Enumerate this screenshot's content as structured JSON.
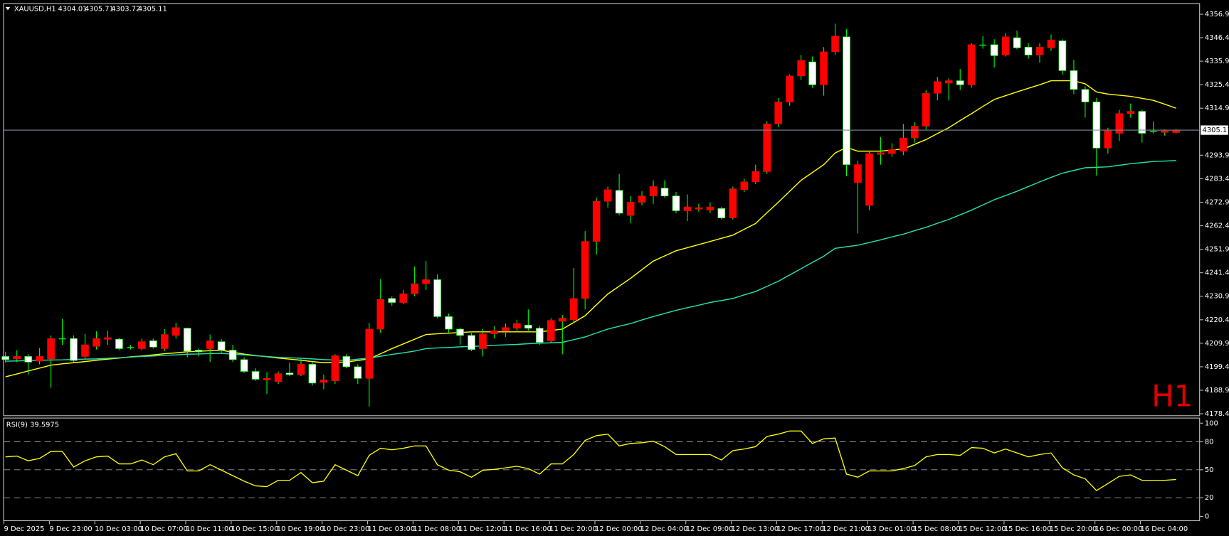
{
  "chart_data": [
    {
      "type": "candlestick",
      "title": "XAUUSD,H1",
      "watermark": "H1",
      "categories": [
        "9 Dec 2025",
        null,
        null,
        null,
        "9 Dec 23:00",
        null,
        null,
        null,
        "10 Dec 03:00",
        null,
        null,
        null,
        "10 Dec 07:00",
        null,
        null,
        null,
        "10 Dec 11:00",
        null,
        null,
        null,
        "10 Dec 15:00",
        null,
        null,
        null,
        "10 Dec 19:00",
        null,
        null,
        null,
        "10 Dec 23:00",
        null,
        null,
        null,
        "11 Dec 03:00",
        null,
        null,
        null,
        "11 Dec 08:00",
        null,
        null,
        null,
        "11 Dec 12:00",
        null,
        null,
        null,
        "11 Dec 16:00",
        null,
        null,
        null,
        "11 Dec 20:00",
        null,
        null,
        null,
        "12 Dec 00:00",
        null,
        null,
        null,
        "12 Dec 04:00",
        null,
        null,
        null,
        "12 Dec 09:00",
        null,
        null,
        null,
        "12 Dec 13:00",
        null,
        null,
        null,
        "12 Dec 17:00",
        null,
        null,
        null,
        "12 Dec 21:00",
        null,
        null,
        null,
        "13 Dec 01:00",
        null,
        null,
        null,
        "15 Dec 08:00",
        null,
        null,
        null,
        "15 Dec 12:00",
        null,
        null,
        null,
        "15 Dec 16:00",
        null,
        null,
        null,
        "15 Dec 20:00",
        null,
        null,
        null,
        "16 Dec 00:00",
        null,
        null,
        null,
        "16 Dec 04:00",
        null,
        null,
        null
      ],
      "open": [
        4204.0,
        4202.9,
        4204.0,
        4201.9,
        4202.9,
        4211.7,
        4212.0,
        4204.0,
        4208.5,
        4211.7,
        4211.7,
        4208.2,
        4207.5,
        4211.0,
        4207.5,
        4213.4,
        4216.6,
        4206.8,
        4207.5,
        4210.6,
        4206.8,
        4202.6,
        4197.3,
        4193.5,
        4192.8,
        4196.6,
        4195.9,
        4200.5,
        4192.4,
        4193.1,
        4204.0,
        4199.4,
        4194.2,
        4216.2,
        4229.9,
        4228.1,
        4232.0,
        4236.5,
        4238.3,
        4221.8,
        4216.2,
        4213.4,
        4207.5,
        4214.1,
        4215.5,
        4216.6,
        4218.0,
        4216.6,
        4211.0,
        4219.7,
        4220.4,
        4229.9,
        4255.4,
        4273.3,
        4278.2,
        4267.0,
        4272.9,
        4275.7,
        4279.2,
        4275.7,
        4269.1,
        4269.8,
        4269.4,
        4270.1,
        4265.9,
        4278.5,
        4282.0,
        4286.6,
        4307.9,
        4317.7,
        4329.3,
        4335.6,
        4325.4,
        4340.1,
        4346.8,
        4281.7,
        4271.5,
        4294.3,
        4294.6,
        4295.7,
        4301.6,
        4306.9,
        4321.6,
        4326.1,
        4327.2,
        4325.4,
        4342.9,
        4343.3,
        4338.7,
        4346.4,
        4342.2,
        4338.7,
        4341.9,
        4345.0,
        4331.7,
        4323.3,
        4317.7,
        4297.1,
        4303.7,
        4312.5,
        4313.5,
        4304.8,
        4304.1,
        4304.01
      ],
      "high": [
        4206.1,
        4206.8,
        4205.0,
        4207.8,
        4213.4,
        4220.8,
        4213.4,
        4214.1,
        4215.2,
        4215.5,
        4212.4,
        4209.2,
        4212.0,
        4212.0,
        4216.2,
        4219.0,
        4216.9,
        4207.5,
        4213.8,
        4211.7,
        4209.2,
        4203.6,
        4198.7,
        4197.0,
        4197.3,
        4201.2,
        4202.9,
        4201.5,
        4195.9,
        4205.0,
        4205.0,
        4200.5,
        4219.0,
        4238.6,
        4230.9,
        4233.7,
        4244.2,
        4246.7,
        4240.7,
        4223.2,
        4216.9,
        4214.5,
        4216.2,
        4217.6,
        4218.7,
        4220.4,
        4225.0,
        4217.6,
        4221.1,
        4222.5,
        4243.5,
        4260.0,
        4275.0,
        4279.9,
        4285.5,
        4275.7,
        4277.8,
        4282.7,
        4282.7,
        4277.5,
        4276.4,
        4272.2,
        4272.9,
        4270.8,
        4279.9,
        4283.4,
        4289.7,
        4309.0,
        4319.5,
        4330.0,
        4338.7,
        4338.0,
        4342.2,
        4352.7,
        4350.3,
        4291.5,
        4296.0,
        4302.0,
        4299.2,
        4307.9,
        4308.6,
        4323.0,
        4328.9,
        4328.2,
        4332.4,
        4344.0,
        4347.1,
        4345.7,
        4348.5,
        4349.6,
        4344.0,
        4344.0,
        4347.8,
        4345.7,
        4336.6,
        4324.7,
        4319.5,
        4306.2,
        4314.2,
        4317.0,
        4314.2,
        4309.0,
        4305.5,
        4305.71
      ],
      "low": [
        4201.2,
        4201.5,
        4195.9,
        4200.5,
        4190.0,
        4209.2,
        4201.5,
        4202.9,
        4207.1,
        4209.2,
        4206.8,
        4207.1,
        4206.8,
        4207.5,
        4206.4,
        4212.0,
        4203.6,
        4204.0,
        4201.5,
        4205.7,
        4201.5,
        4196.6,
        4193.1,
        4187.2,
        4191.7,
        4195.2,
        4195.2,
        4191.0,
        4189.3,
        4191.7,
        4198.7,
        4191.7,
        4181.6,
        4214.5,
        4226.7,
        4227.4,
        4230.9,
        4233.7,
        4221.1,
        4214.5,
        4209.2,
        4206.4,
        4204.0,
        4212.0,
        4212.7,
        4215.5,
        4215.5,
        4209.2,
        4209.9,
        4205.0,
        4219.0,
        4225.0,
        4249.5,
        4270.5,
        4267.0,
        4263.5,
        4271.5,
        4272.2,
        4275.0,
        4268.0,
        4264.5,
        4268.7,
        4268.0,
        4265.2,
        4265.2,
        4277.5,
        4281.0,
        4285.5,
        4306.5,
        4316.0,
        4327.5,
        4324.0,
        4320.5,
        4338.7,
        4284.5,
        4258.9,
        4269.4,
        4289.7,
        4293.2,
        4293.9,
        4299.5,
        4305.5,
        4318.4,
        4318.4,
        4323.0,
        4324.0,
        4341.5,
        4333.1,
        4338.0,
        4341.2,
        4337.0,
        4335.2,
        4340.5,
        4330.0,
        4321.2,
        4310.7,
        4284.8,
        4294.6,
        4300.2,
        4310.7,
        4299.5,
        4303.7,
        4302.7,
        4303.72
      ],
      "close": [
        4202.6,
        4204.0,
        4201.5,
        4204.0,
        4212.0,
        4212.0,
        4202.2,
        4209.2,
        4212.0,
        4212.4,
        4207.5,
        4207.8,
        4210.6,
        4208.2,
        4213.8,
        4216.9,
        4206.4,
        4206.1,
        4211.0,
        4206.8,
        4202.6,
        4197.3,
        4193.8,
        4194.2,
        4196.3,
        4195.9,
        4200.5,
        4192.1,
        4193.5,
        4204.3,
        4199.4,
        4194.2,
        4216.2,
        4229.5,
        4228.1,
        4232.0,
        4236.5,
        4238.3,
        4221.8,
        4216.2,
        4213.4,
        4207.1,
        4214.1,
        4215.5,
        4216.9,
        4218.7,
        4216.6,
        4210.3,
        4220.1,
        4221.1,
        4229.9,
        4255.4,
        4273.3,
        4278.5,
        4268.0,
        4272.9,
        4275.7,
        4279.9,
        4275.7,
        4269.1,
        4270.8,
        4270.5,
        4270.8,
        4265.9,
        4278.9,
        4282.0,
        4286.6,
        4307.9,
        4317.7,
        4329.3,
        4336.3,
        4325.4,
        4340.1,
        4347.1,
        4289.7,
        4289.7,
        4294.6,
        4295.0,
        4296.4,
        4301.6,
        4306.9,
        4321.6,
        4326.8,
        4327.2,
        4325.4,
        4343.3,
        4343.3,
        4338.4,
        4346.8,
        4341.9,
        4338.7,
        4342.2,
        4345.4,
        4331.7,
        4323.3,
        4317.7,
        4297.1,
        4304.8,
        4312.5,
        4313.5,
        4303.7,
        4304.4,
        4304.8,
        4305.11
      ],
      "up_color": "#ff0000",
      "down_color": "#ffffff",
      "wick_color": "#00ff00",
      "price_line_color": "#7f8a99",
      "lines": [
        {
          "color": "#ffff00",
          "values": [
            4194.9,
            4196.2,
            4197.5,
            4198.8,
            4200.1,
            4200.7,
            4201.2,
            4201.7,
            4202.3,
            4202.8,
            4203.3,
            4203.8,
            4204.2,
            4204.7,
            4205.2,
            4205.6,
            4206.1,
            4206.3,
            4206.6,
            4206.8,
            4205.9,
            4205.0,
            4204.4,
            4203.9,
            4203.3,
            4202.8,
            4202.3,
            4201.7,
            4201.2,
            4201.4,
            4201.5,
            4202.2,
            4202.9,
            4205.2,
            4207.5,
            4209.6,
            4211.7,
            4213.8,
            4214.1,
            4214.4,
            4214.7,
            4215.0,
            4215.0,
            4215.0,
            4215.0,
            4215.0,
            4215.0,
            4215.0,
            4215.6,
            4216.2,
            4219.2,
            4222.2,
            4227.1,
            4231.9,
            4235.4,
            4238.9,
            4242.8,
            4246.6,
            4248.9,
            4251.2,
            4252.6,
            4254.0,
            4255.4,
            4256.8,
            4258.2,
            4260.8,
            4263.4,
            4268.2,
            4272.9,
            4277.8,
            4282.7,
            4286.2,
            4289.7,
            4294.9,
            4297.4,
            4295.7,
            4295.7,
            4295.7,
            4296.2,
            4296.7,
            4298.8,
            4300.9,
            4303.6,
            4306.2,
            4309.4,
            4312.5,
            4315.7,
            4318.8,
            4320.5,
            4322.2,
            4323.8,
            4325.4,
            4327.2,
            4327.2,
            4327.2,
            4325.8,
            4322.2,
            4321.2,
            4320.7,
            4320.2,
            4319.3,
            4318.4,
            4316.7,
            4314.9
          ]
        },
        {
          "color": "#22e0b0",
          "values": [
            4201.9,
            4202.0,
            4202.2,
            4202.3,
            4202.4,
            4202.5,
            4202.7,
            4202.8,
            4202.9,
            4203.2,
            4203.4,
            4203.7,
            4204.0,
            4204.2,
            4204.5,
            4204.7,
            4205.0,
            4205.1,
            4205.3,
            4205.4,
            4205.0,
            4204.7,
            4204.3,
            4204.0,
            4203.6,
            4203.4,
            4203.2,
            4202.9,
            4202.6,
            4202.4,
            4202.2,
            4202.8,
            4203.3,
            4204.1,
            4204.9,
            4205.6,
            4206.4,
            4207.5,
            4207.8,
            4208.0,
            4208.3,
            4208.5,
            4208.7,
            4209.0,
            4209.2,
            4209.4,
            4209.7,
            4209.9,
            4210.1,
            4210.3,
            4211.5,
            4212.7,
            4214.5,
            4216.2,
            4217.5,
            4218.7,
            4220.3,
            4221.8,
            4223.2,
            4224.6,
            4225.8,
            4226.9,
            4228.1,
            4229.0,
            4229.9,
            4231.5,
            4233.0,
            4235.3,
            4237.6,
            4240.4,
            4243.2,
            4246.0,
            4248.8,
            4252.3,
            4253.0,
            4253.7,
            4254.9,
            4256.1,
            4257.4,
            4258.6,
            4260.2,
            4261.7,
            4263.5,
            4265.2,
            4267.3,
            4269.4,
            4271.7,
            4274.0,
            4275.9,
            4277.8,
            4279.9,
            4282.0,
            4284.0,
            4285.9,
            4287.1,
            4288.3,
            4288.5,
            4288.7,
            4289.4,
            4290.1,
            4290.6,
            4291.1,
            4291.3,
            4291.5
          ]
        }
      ],
      "ylim": [
        4177.7,
        4361.5
      ],
      "yticks": [
        {
          "value": 4356.9,
          "label": "4356.90"
        },
        {
          "value": 4346.4,
          "label": "4346.40"
        },
        {
          "value": 4335.9,
          "label": "4335.90"
        },
        {
          "value": 4325.4,
          "label": "4325.40"
        },
        {
          "value": 4314.9,
          "label": "4314.90"
        },
        {
          "value": 4293.9,
          "label": "4293.90"
        },
        {
          "value": 4283.4,
          "label": "4283.40"
        },
        {
          "value": 4272.9,
          "label": "4272.90"
        },
        {
          "value": 4262.4,
          "label": "4262.40"
        },
        {
          "value": 4251.9,
          "label": "4251.90"
        },
        {
          "value": 4241.4,
          "label": "4241.40"
        },
        {
          "value": 4230.9,
          "label": "4230.90"
        },
        {
          "value": 4220.4,
          "label": "4220.40"
        },
        {
          "value": 4209.9,
          "label": "4209.90"
        },
        {
          "value": 4199.4,
          "label": "4199.40"
        },
        {
          "value": 4188.9,
          "label": "4188.90"
        },
        {
          "value": 4178.4,
          "label": "4178.40"
        }
      ]
    },
    {
      "type": "line",
      "title": "RSI(9) 39.5975",
      "color": "#ffff00",
      "values": [
        63.9,
        64.7,
        59.7,
        62.2,
        69.7,
        69.7,
        52.9,
        59.7,
        63.9,
        64.7,
        56.3,
        56.3,
        60.5,
        55.5,
        63.9,
        67.2,
        48.7,
        48.7,
        55.5,
        49.6,
        43.7,
        37.8,
        32.8,
        31.9,
        38.7,
        38.7,
        47.1,
        36.1,
        37.8,
        55.5,
        49.6,
        43.7,
        65.5,
        73.1,
        71.4,
        73.1,
        75.6,
        75.6,
        55.5,
        49.6,
        47.9,
        42.0,
        49.6,
        50.4,
        52.1,
        53.8,
        51.3,
        45.4,
        56.3,
        56.3,
        66.4,
        81.5,
        86.6,
        88.2,
        75.6,
        78.2,
        79.0,
        80.7,
        74.8,
        66.4,
        66.4,
        66.4,
        66.4,
        60.5,
        70.6,
        72.3,
        74.8,
        85.7,
        88.2,
        91.6,
        91.6,
        78.2,
        83.2,
        84.0,
        45.4,
        42.0,
        48.7,
        48.7,
        48.7,
        51.3,
        54.6,
        63.9,
        66.4,
        66.4,
        65.5,
        73.9,
        73.1,
        68.1,
        72.3,
        68.1,
        63.9,
        66.4,
        68.1,
        52.1,
        44.5,
        40.3,
        27.7,
        35.3,
        42.9,
        44.5,
        38.7,
        38.7,
        38.7,
        39.6
      ],
      "ylim": [
        0,
        100
      ],
      "yticks": [
        0,
        20,
        50,
        80,
        100
      ]
    }
  ]
}
